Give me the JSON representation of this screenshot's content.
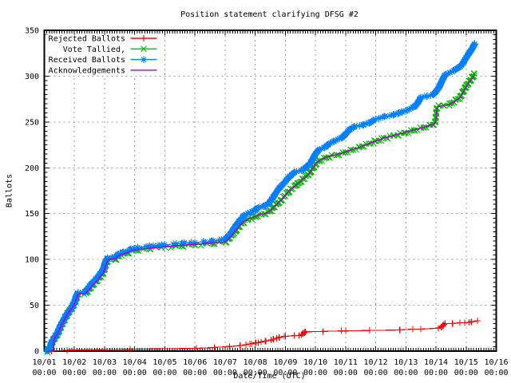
{
  "title": "Position statement clarifying DFSG #2",
  "axes": {
    "x_label": "Date/Time (UTC)",
    "y_label": "Ballots",
    "x_tick_dates": [
      "10/01",
      "10/02",
      "10/03",
      "10/04",
      "10/05",
      "10/06",
      "10/07",
      "10/08",
      "10/09",
      "10/10",
      "10/11",
      "10/12",
      "10/13",
      "10/14",
      "10/15",
      "10/16"
    ],
    "x_tick_time": "00:00",
    "y_ticks": [
      0,
      50,
      100,
      150,
      200,
      250,
      300,
      350
    ],
    "y_min": 0,
    "y_max": 350,
    "x_span_days": 15,
    "x_minor_per_day": 12,
    "y_minor_step": 5,
    "grid": "on"
  },
  "colors": {
    "background": "#ffffff",
    "border": "#000000",
    "grid": "#9c9c9c",
    "text": "#000000",
    "rejected": "#ff0000",
    "tallied": "#00c000",
    "received": "#0080ff",
    "acknowledgements": "#b000d0"
  },
  "legend": {
    "position": "top-left",
    "entries": [
      {
        "label": "Rejected Ballots",
        "series": "rejected",
        "marker": "plus"
      },
      {
        "label": "Vote Tallied,",
        "series": "tallied",
        "marker": "times"
      },
      {
        "label": "Received Ballots",
        "series": "received",
        "marker": "star"
      },
      {
        "label": "Acknowledgements",
        "series": "acknowledgements",
        "marker": "none"
      }
    ]
  },
  "chart_data": {
    "type": "line",
    "title": "Position statement clarifying DFSG #2",
    "xlabel": "Date/Time (UTC)",
    "ylabel": "Ballots",
    "x_unit": "days since 10/01 00:00 UTC",
    "xlim": [
      0,
      15
    ],
    "ylim": [
      0,
      350
    ],
    "series": [
      {
        "name": "Rejected Ballots",
        "color": "#ff0000",
        "marker": "plus",
        "knots": [
          [
            0.24,
            0
          ],
          [
            0.76,
            1
          ],
          [
            2.85,
            2
          ],
          [
            5.05,
            3
          ],
          [
            5.65,
            4
          ],
          [
            6.15,
            5
          ],
          [
            6.5,
            6
          ],
          [
            6.88,
            8
          ],
          [
            7.1,
            9
          ],
          [
            7.35,
            11
          ],
          [
            7.6,
            13
          ],
          [
            7.8,
            15
          ],
          [
            8.0,
            16
          ],
          [
            8.45,
            17
          ],
          [
            8.58,
            19
          ],
          [
            8.66,
            21
          ],
          [
            9.25,
            21.5
          ],
          [
            10.0,
            22
          ],
          [
            10.8,
            22.5
          ],
          [
            11.8,
            23
          ],
          [
            12.5,
            24
          ],
          [
            13.08,
            25
          ],
          [
            13.17,
            26
          ],
          [
            13.24,
            28
          ],
          [
            13.3,
            30
          ],
          [
            13.55,
            30
          ],
          [
            13.95,
            31
          ],
          [
            14.1,
            31.5
          ],
          [
            14.18,
            32
          ],
          [
            14.38,
            33
          ]
        ]
      },
      {
        "name": "Vote Tallied,",
        "color": "#00c000",
        "marker": "times",
        "knots": [
          [
            0.1,
            0
          ],
          [
            0.13,
            1
          ],
          [
            0.17,
            3
          ],
          [
            0.21,
            5
          ],
          [
            0.25,
            9
          ],
          [
            0.3,
            12
          ],
          [
            0.36,
            15
          ],
          [
            0.44,
            19
          ],
          [
            0.52,
            25
          ],
          [
            0.6,
            30
          ],
          [
            0.68,
            35
          ],
          [
            0.76,
            40
          ],
          [
            0.84,
            44
          ],
          [
            0.92,
            47
          ],
          [
            0.99,
            51
          ],
          [
            1.05,
            56
          ],
          [
            1.1,
            61
          ],
          [
            1.14,
            62.5
          ],
          [
            1.37,
            63
          ],
          [
            1.47,
            67
          ],
          [
            1.58,
            71
          ],
          [
            1.72,
            76
          ],
          [
            1.87,
            82
          ],
          [
            1.95,
            85
          ],
          [
            2.01,
            91
          ],
          [
            2.07,
            97
          ],
          [
            2.12,
            99.5
          ],
          [
            2.37,
            100.5
          ],
          [
            2.47,
            104
          ],
          [
            2.62,
            105.5
          ],
          [
            2.77,
            107
          ],
          [
            2.9,
            109.5
          ],
          [
            3.12,
            110.5
          ],
          [
            3.52,
            112
          ],
          [
            4.02,
            113.5
          ],
          [
            4.62,
            115
          ],
          [
            5.02,
            116
          ],
          [
            5.62,
            117.5
          ],
          [
            6.02,
            119
          ],
          [
            6.17,
            124
          ],
          [
            6.32,
            130
          ],
          [
            6.47,
            136
          ],
          [
            6.62,
            141
          ],
          [
            6.77,
            144
          ],
          [
            6.92,
            145.5
          ],
          [
            7.02,
            146.5
          ],
          [
            7.12,
            148.5
          ],
          [
            7.35,
            150
          ],
          [
            7.5,
            153
          ],
          [
            7.65,
            158
          ],
          [
            7.85,
            164
          ],
          [
            8.0,
            170
          ],
          [
            8.2,
            177
          ],
          [
            8.4,
            182
          ],
          [
            8.6,
            188
          ],
          [
            8.8,
            194
          ],
          [
            9.0,
            204
          ],
          [
            9.15,
            208
          ],
          [
            9.3,
            210
          ],
          [
            9.55,
            213
          ],
          [
            9.9,
            215.5
          ],
          [
            10.0,
            217
          ],
          [
            10.25,
            219.5
          ],
          [
            10.6,
            224
          ],
          [
            11.0,
            229
          ],
          [
            11.4,
            233
          ],
          [
            12.0,
            238.5
          ],
          [
            12.3,
            241
          ],
          [
            12.6,
            244
          ],
          [
            12.9,
            247
          ],
          [
            12.97,
            249
          ],
          [
            13.03,
            266
          ],
          [
            13.1,
            267
          ],
          [
            13.45,
            269
          ],
          [
            13.6,
            272
          ],
          [
            13.8,
            277
          ],
          [
            14.0,
            289
          ],
          [
            14.1,
            294
          ],
          [
            14.2,
            298
          ],
          [
            14.27,
            302
          ]
        ]
      },
      {
        "name": "Received Ballots",
        "color": "#0080ff",
        "marker": "star",
        "knots": [
          [
            0.09,
            0
          ],
          [
            0.12,
            1
          ],
          [
            0.16,
            3
          ],
          [
            0.2,
            5
          ],
          [
            0.24,
            9
          ],
          [
            0.29,
            12
          ],
          [
            0.34,
            15
          ],
          [
            0.42,
            19
          ],
          [
            0.5,
            25
          ],
          [
            0.58,
            30
          ],
          [
            0.66,
            35
          ],
          [
            0.74,
            40
          ],
          [
            0.82,
            44
          ],
          [
            0.9,
            47
          ],
          [
            0.97,
            51
          ],
          [
            1.03,
            57
          ],
          [
            1.08,
            62
          ],
          [
            1.12,
            63.5
          ],
          [
            1.35,
            64
          ],
          [
            1.45,
            69
          ],
          [
            1.56,
            73
          ],
          [
            1.7,
            78
          ],
          [
            1.85,
            84
          ],
          [
            1.93,
            87
          ],
          [
            1.99,
            93
          ],
          [
            2.05,
            99
          ],
          [
            2.1,
            101.5
          ],
          [
            2.35,
            102.5
          ],
          [
            2.45,
            106
          ],
          [
            2.6,
            107.5
          ],
          [
            2.75,
            109
          ],
          [
            2.88,
            111.5
          ],
          [
            3.1,
            113
          ],
          [
            3.5,
            114.5
          ],
          [
            4.0,
            116
          ],
          [
            4.6,
            117.5
          ],
          [
            5.0,
            118.5
          ],
          [
            5.6,
            120
          ],
          [
            6.0,
            122
          ],
          [
            6.15,
            127
          ],
          [
            6.3,
            134
          ],
          [
            6.45,
            141
          ],
          [
            6.6,
            147
          ],
          [
            6.75,
            150
          ],
          [
            6.9,
            152
          ],
          [
            7.0,
            154
          ],
          [
            7.1,
            156.5
          ],
          [
            7.3,
            158
          ],
          [
            7.45,
            161
          ],
          [
            7.6,
            168
          ],
          [
            7.8,
            178
          ],
          [
            7.95,
            183
          ],
          [
            8.0,
            185
          ],
          [
            8.15,
            191
          ],
          [
            8.3,
            195
          ],
          [
            8.55,
            197
          ],
          [
            8.7,
            201
          ],
          [
            8.85,
            206
          ],
          [
            8.95,
            212
          ],
          [
            9.0,
            215
          ],
          [
            9.1,
            219
          ],
          [
            9.3,
            222
          ],
          [
            9.45,
            226
          ],
          [
            9.6,
            229
          ],
          [
            9.9,
            233
          ],
          [
            10.0,
            237
          ],
          [
            10.15,
            242
          ],
          [
            10.3,
            245
          ],
          [
            10.6,
            247
          ],
          [
            10.85,
            250
          ],
          [
            11.0,
            253
          ],
          [
            11.3,
            256
          ],
          [
            11.6,
            258
          ],
          [
            12.0,
            262
          ],
          [
            12.3,
            267
          ],
          [
            12.4,
            271
          ],
          [
            12.5,
            277
          ],
          [
            12.7,
            278
          ],
          [
            12.9,
            280
          ],
          [
            13.0,
            283
          ],
          [
            13.1,
            288
          ],
          [
            13.2,
            295
          ],
          [
            13.3,
            301
          ],
          [
            13.4,
            303
          ],
          [
            13.65,
            307
          ],
          [
            13.85,
            312
          ],
          [
            14.0,
            320
          ],
          [
            14.1,
            325
          ],
          [
            14.2,
            330
          ],
          [
            14.28,
            335
          ]
        ]
      },
      {
        "name": "Acknowledgements",
        "color": "#b000d0",
        "marker": "none",
        "knots": [
          [
            0.08,
            0
          ],
          [
            0.3,
            0.5
          ],
          [
            0.32,
            8
          ],
          [
            0.34,
            14
          ],
          [
            0.37,
            15.5
          ],
          [
            0.45,
            19.5
          ],
          [
            0.53,
            25.5
          ],
          [
            0.61,
            30.5
          ],
          [
            0.69,
            35.5
          ],
          [
            0.77,
            40.5
          ],
          [
            0.85,
            44.5
          ],
          [
            0.93,
            47.5
          ],
          [
            1.0,
            51.5
          ],
          [
            1.06,
            56.5
          ],
          [
            1.11,
            61.5
          ],
          [
            1.15,
            62.5
          ],
          [
            1.38,
            63
          ],
          [
            1.48,
            67
          ],
          [
            1.59,
            71
          ],
          [
            1.73,
            76
          ],
          [
            1.88,
            82
          ],
          [
            1.96,
            85
          ],
          [
            2.02,
            91
          ],
          [
            2.08,
            97
          ],
          [
            2.13,
            100
          ],
          [
            2.38,
            101
          ],
          [
            2.48,
            104.5
          ],
          [
            2.63,
            106
          ],
          [
            2.78,
            107.5
          ],
          [
            2.91,
            110
          ],
          [
            3.13,
            111
          ],
          [
            3.53,
            112.5
          ],
          [
            4.03,
            114
          ],
          [
            4.63,
            115.5
          ],
          [
            5.03,
            116.5
          ],
          [
            5.63,
            118
          ],
          [
            6.03,
            119.5
          ],
          [
            6.18,
            124.5
          ],
          [
            6.33,
            130.5
          ],
          [
            6.48,
            136.5
          ],
          [
            6.63,
            141.5
          ],
          [
            6.78,
            144.5
          ],
          [
            6.93,
            146
          ],
          [
            7.03,
            147
          ],
          [
            7.13,
            149
          ],
          [
            7.36,
            150.5
          ],
          [
            7.51,
            153.5
          ],
          [
            7.66,
            158.5
          ],
          [
            7.86,
            164.5
          ],
          [
            8.01,
            170.5
          ],
          [
            8.21,
            177.5
          ],
          [
            8.41,
            182.5
          ],
          [
            8.61,
            188.5
          ],
          [
            8.81,
            194.5
          ],
          [
            9.01,
            204.5
          ],
          [
            9.16,
            208.5
          ],
          [
            9.31,
            210.5
          ],
          [
            9.56,
            213.5
          ],
          [
            9.91,
            216
          ],
          [
            10.01,
            217.5
          ],
          [
            10.26,
            220
          ],
          [
            10.61,
            224.5
          ],
          [
            11.01,
            229.5
          ],
          [
            11.41,
            233.5
          ],
          [
            12.01,
            239
          ],
          [
            12.31,
            241.5
          ],
          [
            12.61,
            244.5
          ],
          [
            12.91,
            247.5
          ],
          [
            12.98,
            249.5
          ],
          [
            13.04,
            266
          ],
          [
            13.11,
            267
          ],
          [
            13.46,
            269
          ],
          [
            13.61,
            272
          ],
          [
            13.81,
            277
          ],
          [
            14.01,
            289
          ],
          [
            14.11,
            294
          ],
          [
            14.21,
            298
          ],
          [
            14.28,
            302
          ]
        ]
      }
    ]
  }
}
